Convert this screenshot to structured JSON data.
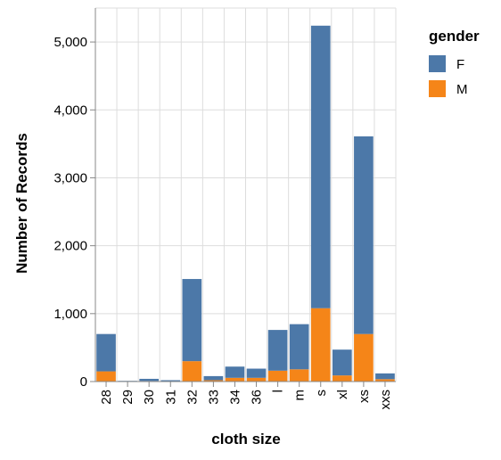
{
  "chart_data": {
    "type": "bar",
    "stacked": true,
    "xlabel": "cloth size",
    "ylabel": "Number of Records",
    "ylim": [
      0,
      5500
    ],
    "yticks": [
      0,
      1000,
      2000,
      3000,
      4000,
      5000
    ],
    "ytick_labels": [
      "0",
      "1,000",
      "2,000",
      "3,000",
      "4,000",
      "5,000"
    ],
    "grid": true,
    "legend": {
      "title": "gender",
      "position": "right"
    },
    "categories": [
      "28",
      "29",
      "30",
      "31",
      "32",
      "33",
      "34",
      "36",
      "l",
      "m",
      "s",
      "xl",
      "xs",
      "xxs"
    ],
    "series": [
      {
        "name": "M",
        "color": "#f58518",
        "values": [
          150,
          3,
          8,
          5,
          300,
          20,
          55,
          55,
          160,
          180,
          1080,
          90,
          700,
          35
        ]
      },
      {
        "name": "F",
        "color": "#4c78a8",
        "values": [
          550,
          7,
          32,
          15,
          1210,
          60,
          165,
          135,
          600,
          665,
          4160,
          380,
          2910,
          85
        ]
      }
    ]
  }
}
